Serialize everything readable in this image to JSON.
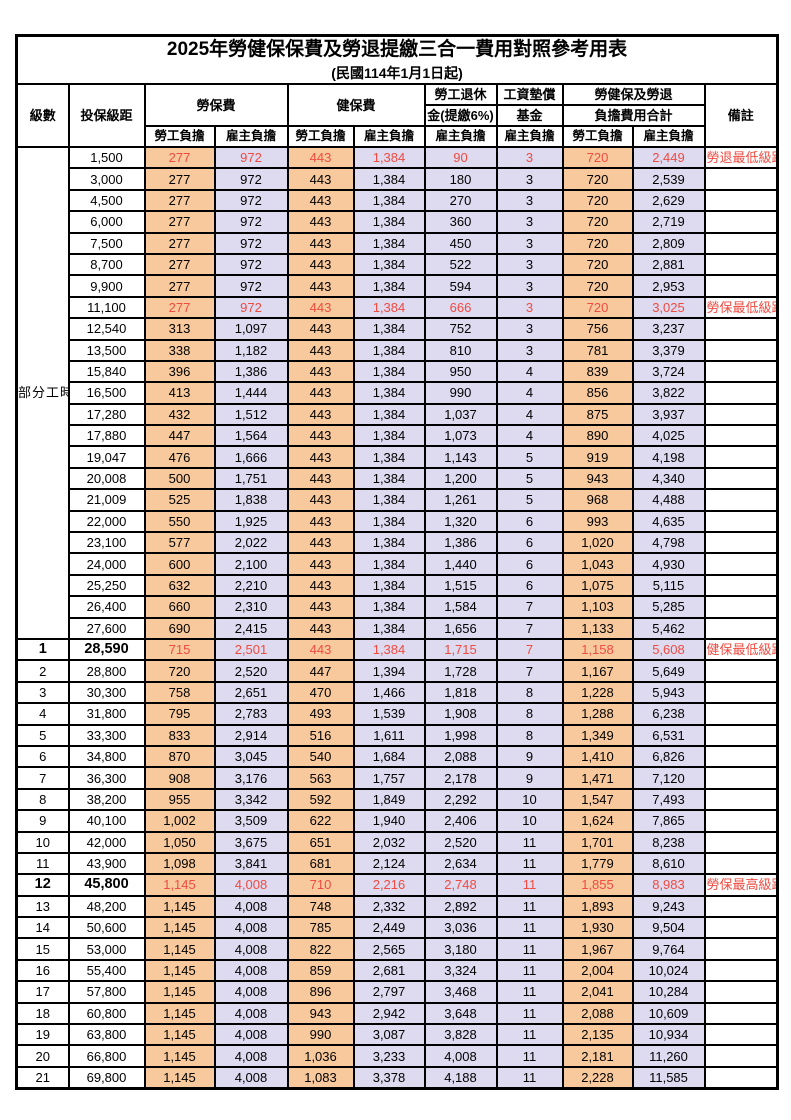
{
  "title": "2025年勞健保保費及勞退提繳三合一費用對照參考用表",
  "subtitle": "(民國114年1月1日起)",
  "columns": {
    "level": "級數",
    "bracket": "投保級距",
    "labor_group": "勞保費",
    "health_group": "健保費",
    "pension_line1": "勞工退休",
    "pension_line2": "金(提繳6%)",
    "fund_line1": "工資墊償",
    "fund_line2": "基金",
    "total_line1": "勞健保及勞退",
    "total_line2": "負擔費用合計",
    "note": "備註",
    "worker": "勞工負擔",
    "employer": "雇主負擔"
  },
  "part_time_label": "部分工時",
  "colors": {
    "worker_bg": "#f8c99d",
    "employer_bg": "#dedaf0",
    "red_text": "#ef4b41",
    "border": "#000000"
  },
  "rows": [
    {
      "level": null,
      "bracket": "1,500",
      "labor_w": "277",
      "labor_e": "972",
      "health_w": "443",
      "health_e": "1,384",
      "pension_e": "90",
      "fund_e": "3",
      "total_w": "720",
      "total_e": "2,449",
      "note": "勞退最低級距",
      "red": true,
      "bold": false
    },
    {
      "level": null,
      "bracket": "3,000",
      "labor_w": "277",
      "labor_e": "972",
      "health_w": "443",
      "health_e": "1,384",
      "pension_e": "180",
      "fund_e": "3",
      "total_w": "720",
      "total_e": "2,539",
      "note": "",
      "red": false,
      "bold": false
    },
    {
      "level": null,
      "bracket": "4,500",
      "labor_w": "277",
      "labor_e": "972",
      "health_w": "443",
      "health_e": "1,384",
      "pension_e": "270",
      "fund_e": "3",
      "total_w": "720",
      "total_e": "2,629",
      "note": "",
      "red": false,
      "bold": false
    },
    {
      "level": null,
      "bracket": "6,000",
      "labor_w": "277",
      "labor_e": "972",
      "health_w": "443",
      "health_e": "1,384",
      "pension_e": "360",
      "fund_e": "3",
      "total_w": "720",
      "total_e": "2,719",
      "note": "",
      "red": false,
      "bold": false
    },
    {
      "level": null,
      "bracket": "7,500",
      "labor_w": "277",
      "labor_e": "972",
      "health_w": "443",
      "health_e": "1,384",
      "pension_e": "450",
      "fund_e": "3",
      "total_w": "720",
      "total_e": "2,809",
      "note": "",
      "red": false,
      "bold": false
    },
    {
      "level": null,
      "bracket": "8,700",
      "labor_w": "277",
      "labor_e": "972",
      "health_w": "443",
      "health_e": "1,384",
      "pension_e": "522",
      "fund_e": "3",
      "total_w": "720",
      "total_e": "2,881",
      "note": "",
      "red": false,
      "bold": false
    },
    {
      "level": null,
      "bracket": "9,900",
      "labor_w": "277",
      "labor_e": "972",
      "health_w": "443",
      "health_e": "1,384",
      "pension_e": "594",
      "fund_e": "3",
      "total_w": "720",
      "total_e": "2,953",
      "note": "",
      "red": false,
      "bold": false
    },
    {
      "level": null,
      "bracket": "11,100",
      "labor_w": "277",
      "labor_e": "972",
      "health_w": "443",
      "health_e": "1,384",
      "pension_e": "666",
      "fund_e": "3",
      "total_w": "720",
      "total_e": "3,025",
      "note": "勞保最低級距",
      "red": true,
      "bold": false
    },
    {
      "level": null,
      "bracket": "12,540",
      "labor_w": "313",
      "labor_e": "1,097",
      "health_w": "443",
      "health_e": "1,384",
      "pension_e": "752",
      "fund_e": "3",
      "total_w": "756",
      "total_e": "3,237",
      "note": "",
      "red": false,
      "bold": false
    },
    {
      "level": null,
      "bracket": "13,500",
      "labor_w": "338",
      "labor_e": "1,182",
      "health_w": "443",
      "health_e": "1,384",
      "pension_e": "810",
      "fund_e": "3",
      "total_w": "781",
      "total_e": "3,379",
      "note": "",
      "red": false,
      "bold": false
    },
    {
      "level": null,
      "bracket": "15,840",
      "labor_w": "396",
      "labor_e": "1,386",
      "health_w": "443",
      "health_e": "1,384",
      "pension_e": "950",
      "fund_e": "4",
      "total_w": "839",
      "total_e": "3,724",
      "note": "",
      "red": false,
      "bold": false
    },
    {
      "level": null,
      "bracket": "16,500",
      "labor_w": "413",
      "labor_e": "1,444",
      "health_w": "443",
      "health_e": "1,384",
      "pension_e": "990",
      "fund_e": "4",
      "total_w": "856",
      "total_e": "3,822",
      "note": "",
      "red": false,
      "bold": false
    },
    {
      "level": null,
      "bracket": "17,280",
      "labor_w": "432",
      "labor_e": "1,512",
      "health_w": "443",
      "health_e": "1,384",
      "pension_e": "1,037",
      "fund_e": "4",
      "total_w": "875",
      "total_e": "3,937",
      "note": "",
      "red": false,
      "bold": false
    },
    {
      "level": null,
      "bracket": "17,880",
      "labor_w": "447",
      "labor_e": "1,564",
      "health_w": "443",
      "health_e": "1,384",
      "pension_e": "1,073",
      "fund_e": "4",
      "total_w": "890",
      "total_e": "4,025",
      "note": "",
      "red": false,
      "bold": false
    },
    {
      "level": null,
      "bracket": "19,047",
      "labor_w": "476",
      "labor_e": "1,666",
      "health_w": "443",
      "health_e": "1,384",
      "pension_e": "1,143",
      "fund_e": "5",
      "total_w": "919",
      "total_e": "4,198",
      "note": "",
      "red": false,
      "bold": false
    },
    {
      "level": null,
      "bracket": "20,008",
      "labor_w": "500",
      "labor_e": "1,751",
      "health_w": "443",
      "health_e": "1,384",
      "pension_e": "1,200",
      "fund_e": "5",
      "total_w": "943",
      "total_e": "4,340",
      "note": "",
      "red": false,
      "bold": false
    },
    {
      "level": null,
      "bracket": "21,009",
      "labor_w": "525",
      "labor_e": "1,838",
      "health_w": "443",
      "health_e": "1,384",
      "pension_e": "1,261",
      "fund_e": "5",
      "total_w": "968",
      "total_e": "4,488",
      "note": "",
      "red": false,
      "bold": false
    },
    {
      "level": null,
      "bracket": "22,000",
      "labor_w": "550",
      "labor_e": "1,925",
      "health_w": "443",
      "health_e": "1,384",
      "pension_e": "1,320",
      "fund_e": "6",
      "total_w": "993",
      "total_e": "4,635",
      "note": "",
      "red": false,
      "bold": false
    },
    {
      "level": null,
      "bracket": "23,100",
      "labor_w": "577",
      "labor_e": "2,022",
      "health_w": "443",
      "health_e": "1,384",
      "pension_e": "1,386",
      "fund_e": "6",
      "total_w": "1,020",
      "total_e": "4,798",
      "note": "",
      "red": false,
      "bold": false
    },
    {
      "level": null,
      "bracket": "24,000",
      "labor_w": "600",
      "labor_e": "2,100",
      "health_w": "443",
      "health_e": "1,384",
      "pension_e": "1,440",
      "fund_e": "6",
      "total_w": "1,043",
      "total_e": "4,930",
      "note": "",
      "red": false,
      "bold": false
    },
    {
      "level": null,
      "bracket": "25,250",
      "labor_w": "632",
      "labor_e": "2,210",
      "health_w": "443",
      "health_e": "1,384",
      "pension_e": "1,515",
      "fund_e": "6",
      "total_w": "1,075",
      "total_e": "5,115",
      "note": "",
      "red": false,
      "bold": false
    },
    {
      "level": null,
      "bracket": "26,400",
      "labor_w": "660",
      "labor_e": "2,310",
      "health_w": "443",
      "health_e": "1,384",
      "pension_e": "1,584",
      "fund_e": "7",
      "total_w": "1,103",
      "total_e": "5,285",
      "note": "",
      "red": false,
      "bold": false
    },
    {
      "level": null,
      "bracket": "27,600",
      "labor_w": "690",
      "labor_e": "2,415",
      "health_w": "443",
      "health_e": "1,384",
      "pension_e": "1,656",
      "fund_e": "7",
      "total_w": "1,133",
      "total_e": "5,462",
      "note": "",
      "red": false,
      "bold": false
    },
    {
      "level": "1",
      "bracket": "28,590",
      "labor_w": "715",
      "labor_e": "2,501",
      "health_w": "443",
      "health_e": "1,384",
      "pension_e": "1,715",
      "fund_e": "7",
      "total_w": "1,158",
      "total_e": "5,608",
      "note": "健保最低級距",
      "red": true,
      "bold": true
    },
    {
      "level": "2",
      "bracket": "28,800",
      "labor_w": "720",
      "labor_e": "2,520",
      "health_w": "447",
      "health_e": "1,394",
      "pension_e": "1,728",
      "fund_e": "7",
      "total_w": "1,167",
      "total_e": "5,649",
      "note": "",
      "red": false,
      "bold": false
    },
    {
      "level": "3",
      "bracket": "30,300",
      "labor_w": "758",
      "labor_e": "2,651",
      "health_w": "470",
      "health_e": "1,466",
      "pension_e": "1,818",
      "fund_e": "8",
      "total_w": "1,228",
      "total_e": "5,943",
      "note": "",
      "red": false,
      "bold": false
    },
    {
      "level": "4",
      "bracket": "31,800",
      "labor_w": "795",
      "labor_e": "2,783",
      "health_w": "493",
      "health_e": "1,539",
      "pension_e": "1,908",
      "fund_e": "8",
      "total_w": "1,288",
      "total_e": "6,238",
      "note": "",
      "red": false,
      "bold": false
    },
    {
      "level": "5",
      "bracket": "33,300",
      "labor_w": "833",
      "labor_e": "2,914",
      "health_w": "516",
      "health_e": "1,611",
      "pension_e": "1,998",
      "fund_e": "8",
      "total_w": "1,349",
      "total_e": "6,531",
      "note": "",
      "red": false,
      "bold": false
    },
    {
      "level": "6",
      "bracket": "34,800",
      "labor_w": "870",
      "labor_e": "3,045",
      "health_w": "540",
      "health_e": "1,684",
      "pension_e": "2,088",
      "fund_e": "9",
      "total_w": "1,410",
      "total_e": "6,826",
      "note": "",
      "red": false,
      "bold": false
    },
    {
      "level": "7",
      "bracket": "36,300",
      "labor_w": "908",
      "labor_e": "3,176",
      "health_w": "563",
      "health_e": "1,757",
      "pension_e": "2,178",
      "fund_e": "9",
      "total_w": "1,471",
      "total_e": "7,120",
      "note": "",
      "red": false,
      "bold": false
    },
    {
      "level": "8",
      "bracket": "38,200",
      "labor_w": "955",
      "labor_e": "3,342",
      "health_w": "592",
      "health_e": "1,849",
      "pension_e": "2,292",
      "fund_e": "10",
      "total_w": "1,547",
      "total_e": "7,493",
      "note": "",
      "red": false,
      "bold": false
    },
    {
      "level": "9",
      "bracket": "40,100",
      "labor_w": "1,002",
      "labor_e": "3,509",
      "health_w": "622",
      "health_e": "1,940",
      "pension_e": "2,406",
      "fund_e": "10",
      "total_w": "1,624",
      "total_e": "7,865",
      "note": "",
      "red": false,
      "bold": false
    },
    {
      "level": "10",
      "bracket": "42,000",
      "labor_w": "1,050",
      "labor_e": "3,675",
      "health_w": "651",
      "health_e": "2,032",
      "pension_e": "2,520",
      "fund_e": "11",
      "total_w": "1,701",
      "total_e": "8,238",
      "note": "",
      "red": false,
      "bold": false
    },
    {
      "level": "11",
      "bracket": "43,900",
      "labor_w": "1,098",
      "labor_e": "3,841",
      "health_w": "681",
      "health_e": "2,124",
      "pension_e": "2,634",
      "fund_e": "11",
      "total_w": "1,779",
      "total_e": "8,610",
      "note": "",
      "red": false,
      "bold": false
    },
    {
      "level": "12",
      "bracket": "45,800",
      "labor_w": "1,145",
      "labor_e": "4,008",
      "health_w": "710",
      "health_e": "2,216",
      "pension_e": "2,748",
      "fund_e": "11",
      "total_w": "1,855",
      "total_e": "8,983",
      "note": "勞保最高級距",
      "red": true,
      "bold": true
    },
    {
      "level": "13",
      "bracket": "48,200",
      "labor_w": "1,145",
      "labor_e": "4,008",
      "health_w": "748",
      "health_e": "2,332",
      "pension_e": "2,892",
      "fund_e": "11",
      "total_w": "1,893",
      "total_e": "9,243",
      "note": "",
      "red": false,
      "bold": false
    },
    {
      "level": "14",
      "bracket": "50,600",
      "labor_w": "1,145",
      "labor_e": "4,008",
      "health_w": "785",
      "health_e": "2,449",
      "pension_e": "3,036",
      "fund_e": "11",
      "total_w": "1,930",
      "total_e": "9,504",
      "note": "",
      "red": false,
      "bold": false
    },
    {
      "level": "15",
      "bracket": "53,000",
      "labor_w": "1,145",
      "labor_e": "4,008",
      "health_w": "822",
      "health_e": "2,565",
      "pension_e": "3,180",
      "fund_e": "11",
      "total_w": "1,967",
      "total_e": "9,764",
      "note": "",
      "red": false,
      "bold": false
    },
    {
      "level": "16",
      "bracket": "55,400",
      "labor_w": "1,145",
      "labor_e": "4,008",
      "health_w": "859",
      "health_e": "2,681",
      "pension_e": "3,324",
      "fund_e": "11",
      "total_w": "2,004",
      "total_e": "10,024",
      "note": "",
      "red": false,
      "bold": false
    },
    {
      "level": "17",
      "bracket": "57,800",
      "labor_w": "1,145",
      "labor_e": "4,008",
      "health_w": "896",
      "health_e": "2,797",
      "pension_e": "3,468",
      "fund_e": "11",
      "total_w": "2,041",
      "total_e": "10,284",
      "note": "",
      "red": false,
      "bold": false
    },
    {
      "level": "18",
      "bracket": "60,800",
      "labor_w": "1,145",
      "labor_e": "4,008",
      "health_w": "943",
      "health_e": "2,942",
      "pension_e": "3,648",
      "fund_e": "11",
      "total_w": "2,088",
      "total_e": "10,609",
      "note": "",
      "red": false,
      "bold": false
    },
    {
      "level": "19",
      "bracket": "63,800",
      "labor_w": "1,145",
      "labor_e": "4,008",
      "health_w": "990",
      "health_e": "3,087",
      "pension_e": "3,828",
      "fund_e": "11",
      "total_w": "2,135",
      "total_e": "10,934",
      "note": "",
      "red": false,
      "bold": false
    },
    {
      "level": "20",
      "bracket": "66,800",
      "labor_w": "1,145",
      "labor_e": "4,008",
      "health_w": "1,036",
      "health_e": "3,233",
      "pension_e": "4,008",
      "fund_e": "11",
      "total_w": "2,181",
      "total_e": "11,260",
      "note": "",
      "red": false,
      "bold": false
    },
    {
      "level": "21",
      "bracket": "69,800",
      "labor_w": "1,145",
      "labor_e": "4,008",
      "health_w": "1,083",
      "health_e": "3,378",
      "pension_e": "4,188",
      "fund_e": "11",
      "total_w": "2,228",
      "total_e": "11,585",
      "note": "",
      "red": false,
      "bold": false
    }
  ]
}
